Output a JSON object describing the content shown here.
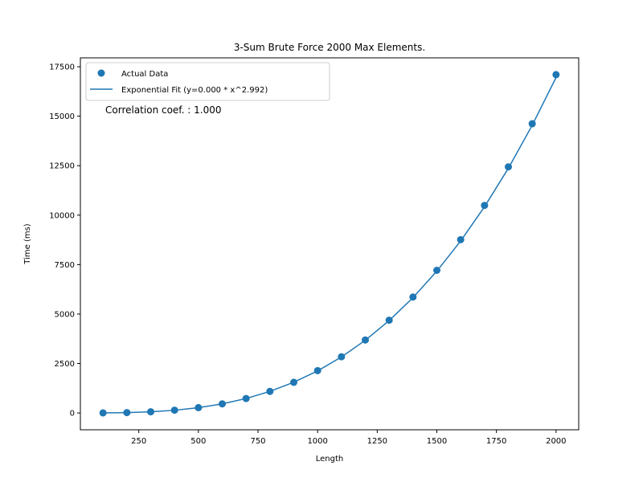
{
  "chart_data": {
    "type": "scatter",
    "title": "3-Sum Brute Force 2000 Max Elements.",
    "xlabel": "Length",
    "ylabel": "Time (ms)",
    "xlim": [
      5,
      2095
    ],
    "ylim": [
      -850,
      17950
    ],
    "xticks": [
      250,
      500,
      750,
      1000,
      1250,
      1500,
      1750,
      2000
    ],
    "yticks": [
      0,
      2500,
      5000,
      7500,
      10000,
      12500,
      15000,
      17500
    ],
    "grid": false,
    "legend_position": "top-left",
    "color": "#1f77b4",
    "annotation": "Correlation coef. : 1.000",
    "series": [
      {
        "name": "Actual Data",
        "kind": "scatter",
        "x": [
          100,
          200,
          300,
          400,
          500,
          600,
          700,
          800,
          900,
          1000,
          1100,
          1200,
          1300,
          1400,
          1500,
          1600,
          1700,
          1800,
          1900,
          2000
        ],
        "y": [
          3,
          20,
          60,
          140,
          270,
          460,
          730,
          1090,
          1550,
          2140,
          2840,
          3690,
          4690,
          5860,
          7210,
          8760,
          10490,
          12440,
          14620,
          17100
        ]
      },
      {
        "name": "Exponential Fit (y=0.000 * x^2.992)",
        "kind": "line",
        "x": [
          100,
          200,
          300,
          400,
          500,
          600,
          700,
          800,
          900,
          1000,
          1100,
          1200,
          1300,
          1400,
          1500,
          1600,
          1700,
          1800,
          1900,
          2000
        ],
        "y": [
          2,
          17,
          58,
          137,
          267,
          461,
          731,
          1090,
          1552,
          2128,
          2831,
          3674,
          4669,
          5829,
          7167,
          8694,
          10424,
          12369,
          14542,
          16955
        ]
      }
    ]
  }
}
